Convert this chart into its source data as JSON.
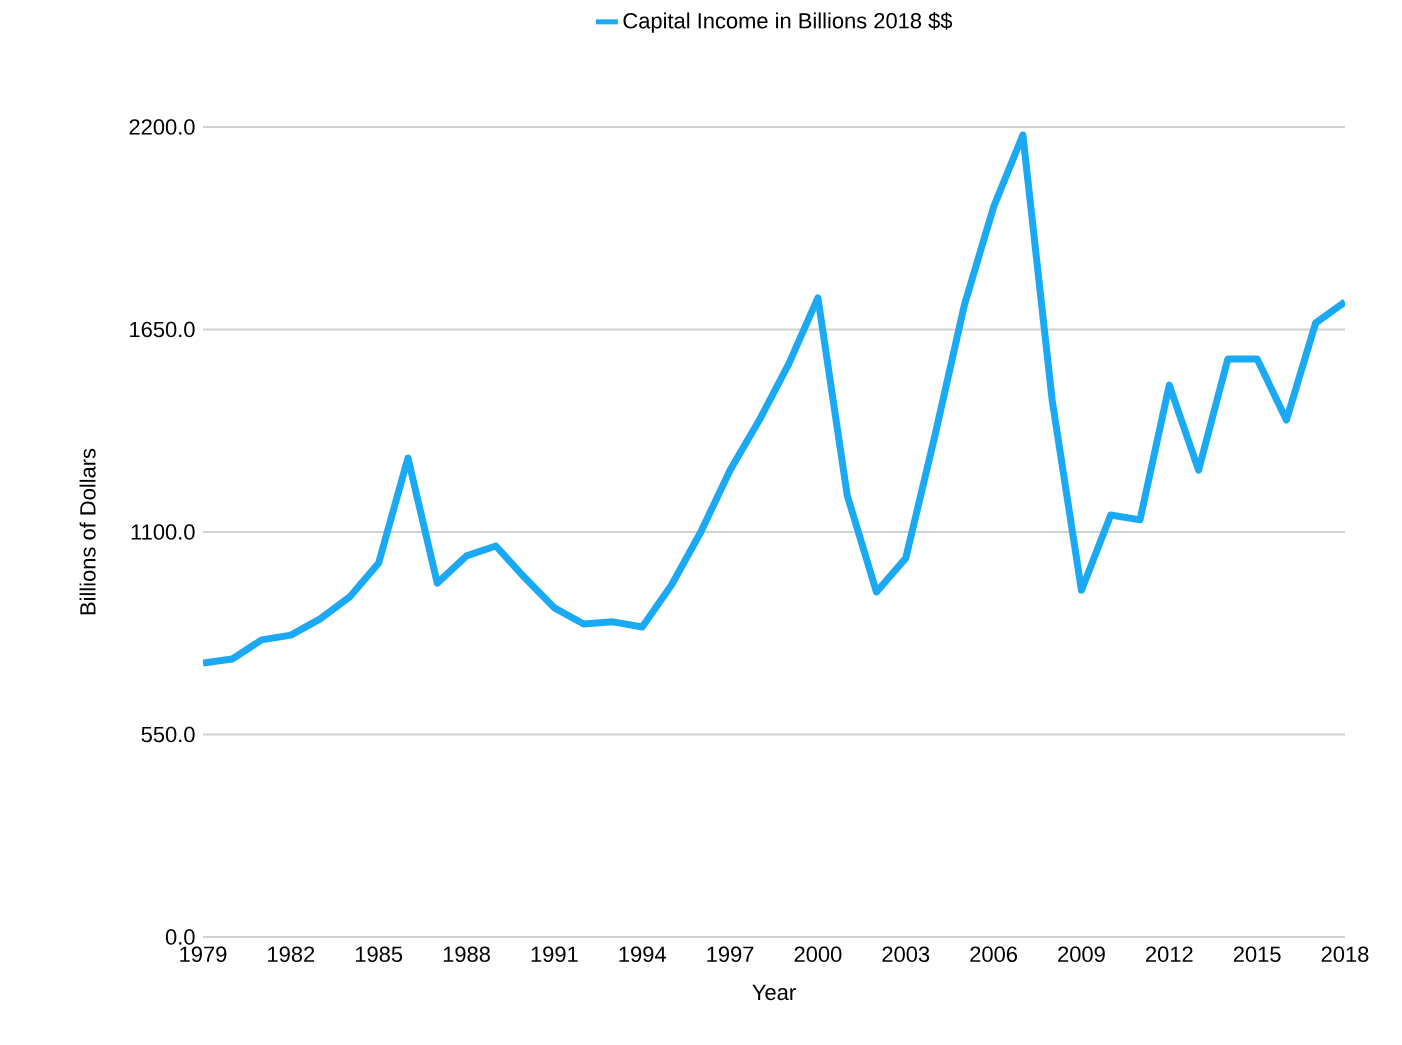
{
  "chart_data": {
    "type": "line",
    "xlabel": "Year",
    "ylabel": "Billions of Dollars",
    "x": [
      1979,
      1980,
      1981,
      1982,
      1983,
      1984,
      1985,
      1986,
      1987,
      1988,
      1989,
      1990,
      1991,
      1992,
      1993,
      1994,
      1995,
      1996,
      1997,
      1998,
      1999,
      2000,
      2001,
      2002,
      2003,
      2004,
      2005,
      2006,
      2007,
      2008,
      2009,
      2010,
      2011,
      2012,
      2013,
      2014,
      2015,
      2016,
      2017,
      2018
    ],
    "series": [
      {
        "name": "Capital Income in Billions  2018 $$",
        "color": "#1aa9f5",
        "values": [
          744,
          755,
          807,
          820,
          864,
          923,
          1016,
          1301,
          961,
          1035,
          1062,
          975,
          894,
          850,
          856,
          842,
          956,
          1100,
          1268,
          1404,
          1556,
          1736,
          1200,
          937,
          1029,
          1363,
          1716,
          1983,
          2178,
          1458,
          942,
          1146,
          1133,
          1499,
          1268,
          1570,
          1570,
          1404,
          1668,
          1725
        ]
      }
    ],
    "xlim": [
      1979,
      2018
    ],
    "xticks": [
      1979,
      1982,
      1985,
      1988,
      1991,
      1994,
      1997,
      2000,
      2003,
      2006,
      2009,
      2012,
      2015,
      2018
    ],
    "ylim": [
      0,
      2200
    ],
    "yticks": [
      {
        "value": 0,
        "label": "0.0"
      },
      {
        "value": 550,
        "label": "550.0"
      },
      {
        "value": 1100,
        "label": "1100.0"
      },
      {
        "value": 1650,
        "label": "1650.0"
      },
      {
        "value": 2200,
        "label": "2200.0"
      }
    ],
    "grid": "y",
    "legend": "top"
  }
}
